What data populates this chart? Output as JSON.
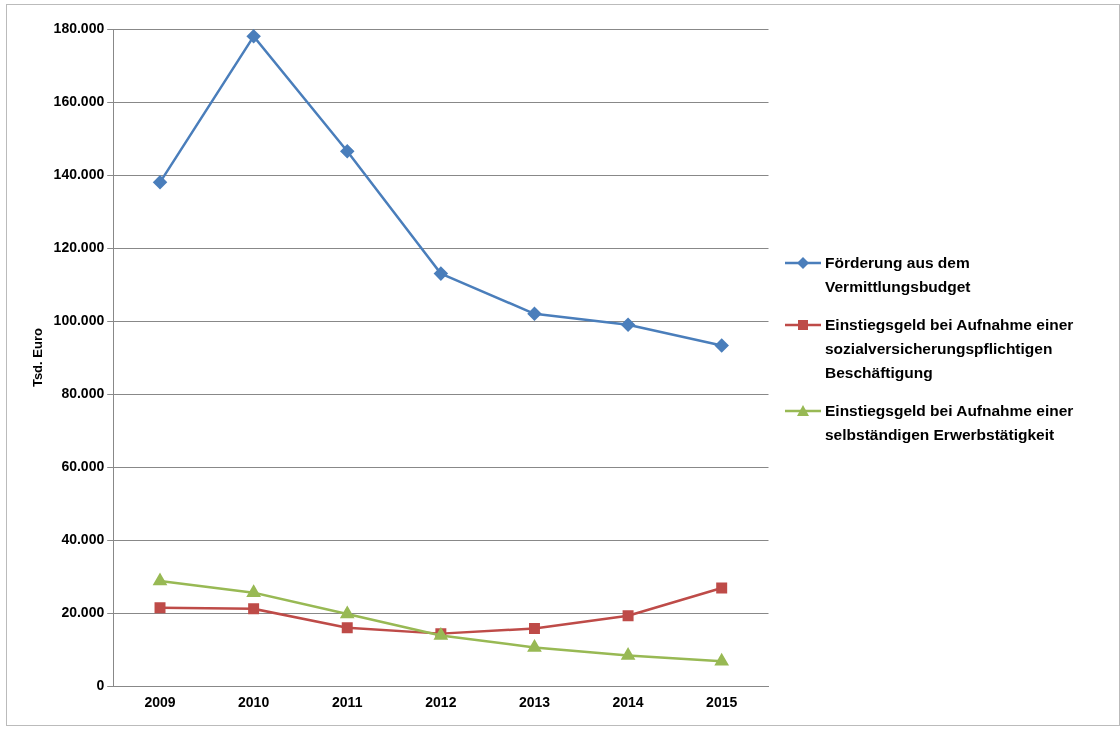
{
  "chart_data": {
    "type": "line",
    "ylabel": "Tsd. Euro",
    "categories": [
      "2009",
      "2010",
      "2011",
      "2012",
      "2013",
      "2014",
      "2015"
    ],
    "series": [
      {
        "name": "Förderung aus dem Vermittlungsbudget",
        "color": "#4a7ebb",
        "marker": "diamond",
        "values": [
          138000,
          178000,
          146500,
          113000,
          102000,
          99000,
          93300
        ]
      },
      {
        "name": "Einstiegsgeld bei Aufnahme einer sozialversicherungspflichtigen Beschäftigung",
        "color": "#be4b48",
        "marker": "square",
        "values": [
          21500,
          21200,
          16000,
          14400,
          15800,
          19300,
          26900
        ]
      },
      {
        "name": "Einstiegsgeld bei Aufnahme einer selbständigen Erwerbstätigkeit",
        "color": "#98b954",
        "marker": "triangle",
        "values": [
          28800,
          25600,
          19800,
          13900,
          10600,
          8400,
          6800
        ]
      }
    ],
    "ylim": [
      0,
      180000
    ],
    "yticks": [
      {
        "value": 0,
        "label": "0"
      },
      {
        "value": 20000,
        "label": "20.000"
      },
      {
        "value": 40000,
        "label": "40.000"
      },
      {
        "value": 60000,
        "label": "60.000"
      },
      {
        "value": 80000,
        "label": "80.000"
      },
      {
        "value": 100000,
        "label": "100.000"
      },
      {
        "value": 120000,
        "label": "120.000"
      },
      {
        "value": 140000,
        "label": "140.000"
      },
      {
        "value": 160000,
        "label": "160.000"
      },
      {
        "value": 180000,
        "label": "180.000"
      }
    ],
    "grid": "y",
    "legend": "right"
  }
}
